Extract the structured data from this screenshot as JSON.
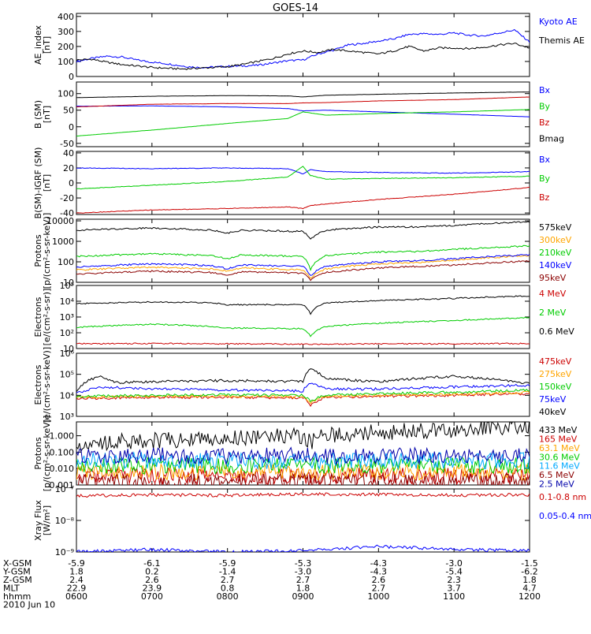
{
  "title": "GOES-14",
  "chart_data": [
    {
      "type": "line",
      "panel": "ae",
      "ylabel": "AE_index\n[nT]",
      "ylim": [
        0,
        420
      ],
      "ticks": [
        "0",
        "100",
        "200",
        "300",
        "400"
      ],
      "tick_values": [
        0,
        100,
        200,
        300,
        400
      ],
      "series": [
        {
          "name": "Kyoto AE",
          "color": "#0000ff",
          "x": [
            6.0,
            6.2,
            6.4,
            6.6,
            6.8,
            7.0,
            7.2,
            7.4,
            7.6,
            7.8,
            8.0,
            8.2,
            8.4,
            8.6,
            8.8,
            9.0,
            9.2,
            9.4,
            9.6,
            9.8,
            10.0,
            10.2,
            10.4,
            10.6,
            10.8,
            11.0,
            11.2,
            11.4,
            11.6,
            11.8,
            12.0
          ],
          "y": [
            100,
            120,
            135,
            130,
            110,
            95,
            85,
            70,
            60,
            62,
            68,
            70,
            75,
            90,
            105,
            110,
            150,
            175,
            210,
            220,
            235,
            250,
            280,
            285,
            280,
            290,
            275,
            270,
            290,
            310,
            230
          ]
        },
        {
          "name": "Themis AE",
          "color": "#000000",
          "x": [
            6.0,
            6.2,
            6.4,
            6.6,
            6.8,
            7.0,
            7.2,
            7.4,
            7.6,
            7.8,
            8.0,
            8.2,
            8.4,
            8.6,
            8.8,
            9.0,
            9.2,
            9.4,
            9.6,
            9.8,
            10.0,
            10.2,
            10.4,
            10.6,
            10.8,
            11.0,
            11.2,
            11.4,
            11.6,
            11.8,
            12.0
          ],
          "y": [
            110,
            115,
            95,
            80,
            70,
            60,
            55,
            50,
            55,
            60,
            65,
            80,
            100,
            120,
            150,
            170,
            160,
            180,
            170,
            160,
            150,
            170,
            200,
            170,
            190,
            190,
            185,
            195,
            210,
            220,
            190
          ]
        }
      ]
    },
    {
      "type": "line",
      "panel": "b_sm",
      "ylabel": "B (SM)\n[nT]",
      "ylim": [
        -60,
        135
      ],
      "ticks": [
        "-50",
        "0",
        "50",
        "100"
      ],
      "tick_values": [
        -50,
        0,
        50,
        100
      ],
      "series": [
        {
          "name": "Bx",
          "color": "#0000ff",
          "x": [
            6.0,
            7.0,
            8.0,
            8.8,
            9.0,
            9.3,
            10.0,
            11.0,
            12.0
          ],
          "y": [
            62,
            63,
            60,
            55,
            48,
            50,
            45,
            38,
            30
          ]
        },
        {
          "name": "By",
          "color": "#00cc00",
          "x": [
            6.0,
            7.0,
            8.0,
            8.8,
            9.0,
            9.3,
            10.0,
            11.0,
            12.0
          ],
          "y": [
            -28,
            -10,
            10,
            25,
            45,
            35,
            40,
            45,
            52
          ]
        },
        {
          "name": "Bz",
          "color": "#cc0000",
          "x": [
            6.0,
            7.0,
            8.0,
            8.8,
            9.0,
            9.3,
            10.0,
            11.0,
            12.0
          ],
          "y": [
            60,
            68,
            70,
            70,
            72,
            73,
            78,
            82,
            90
          ]
        },
        {
          "name": "Bmag",
          "color": "#000000",
          "x": [
            6.0,
            7.0,
            8.0,
            8.8,
            9.0,
            9.3,
            10.0,
            11.0,
            12.0
          ],
          "y": [
            88,
            92,
            94,
            93,
            90,
            95,
            98,
            102,
            105
          ]
        }
      ]
    },
    {
      "type": "line",
      "panel": "b_igrf",
      "ylabel": "B(SM)-IGRF (SM)\n[nT]",
      "ylim": [
        -42,
        42
      ],
      "ticks": [
        "-40",
        "-20",
        "0",
        "20",
        "40"
      ],
      "tick_values": [
        -40,
        -20,
        0,
        20,
        40
      ],
      "series": [
        {
          "name": "Bx",
          "color": "#0000ff",
          "x": [
            6.0,
            7.0,
            8.0,
            8.8,
            9.0,
            9.1,
            9.3,
            10.0,
            11.0,
            12.0
          ],
          "y": [
            20,
            19,
            20,
            19,
            12,
            18,
            15,
            14,
            13,
            15
          ]
        },
        {
          "name": "By",
          "color": "#00cc00",
          "x": [
            6.0,
            7.0,
            8.0,
            8.8,
            9.0,
            9.1,
            9.3,
            10.0,
            11.0,
            12.0
          ],
          "y": [
            -8,
            -3,
            2,
            8,
            22,
            10,
            5,
            6,
            7,
            9
          ]
        },
        {
          "name": "Bz",
          "color": "#cc0000",
          "x": [
            6.0,
            7.0,
            8.0,
            8.8,
            9.0,
            9.1,
            9.3,
            10.0,
            11.0,
            12.0
          ],
          "y": [
            -40,
            -36,
            -34,
            -32,
            -34,
            -30,
            -28,
            -22,
            -15,
            -6
          ]
        }
      ]
    },
    {
      "type": "line",
      "panel": "protons_low",
      "scale": "log",
      "ylabel": "Protons\n[p/(cm²-s-sr-keV)]",
      "ylim": [
        10,
        12000
      ],
      "ticks": [
        "10",
        "100",
        "1000",
        "10000"
      ],
      "tick_values": [
        10,
        100,
        1000,
        10000
      ],
      "series": [
        {
          "name": "575keV",
          "color": "#000000",
          "x": [
            6.0,
            7.0,
            7.8,
            8.0,
            8.2,
            9.0,
            9.1,
            9.3,
            10.0,
            10.5,
            11.0,
            12.0
          ],
          "y": [
            3500,
            4500,
            3500,
            2500,
            3500,
            3000,
            1200,
            3500,
            5000,
            5000,
            6000,
            9000
          ]
        },
        {
          "name": "300keV",
          "color": "#ffa500",
          "x": [
            6.0,
            7.0,
            7.8,
            8.0,
            8.2,
            9.0,
            9.1,
            9.3,
            10.0,
            10.5,
            11.0,
            12.0
          ],
          "y": [
            40,
            55,
            45,
            35,
            50,
            40,
            15,
            45,
            80,
            90,
            120,
            200
          ]
        },
        {
          "name": "210keV",
          "color": "#00cc00",
          "x": [
            6.0,
            7.0,
            7.8,
            8.0,
            8.2,
            9.0,
            9.1,
            9.3,
            10.0,
            10.5,
            11.0,
            12.0
          ],
          "y": [
            180,
            250,
            200,
            140,
            220,
            180,
            40,
            200,
            300,
            320,
            400,
            600
          ]
        },
        {
          "name": "140keV",
          "color": "#0000ff",
          "x": [
            6.0,
            7.0,
            7.8,
            8.0,
            8.2,
            9.0,
            9.1,
            9.3,
            10.0,
            10.5,
            11.0,
            12.0
          ],
          "y": [
            55,
            80,
            65,
            45,
            70,
            60,
            20,
            60,
            100,
            110,
            140,
            220
          ]
        },
        {
          "name": "95keV",
          "color": "#8b0000",
          "x": [
            6.0,
            7.0,
            7.8,
            8.0,
            8.2,
            9.0,
            9.1,
            9.3,
            10.0,
            10.5,
            11.0,
            12.0
          ],
          "y": [
            25,
            35,
            30,
            22,
            32,
            28,
            12,
            30,
            50,
            60,
            70,
            110
          ]
        }
      ]
    },
    {
      "type": "line",
      "panel": "electrons_high",
      "scale": "log",
      "ylabel": "Electrons\n[e/(cm²-s-sr)]",
      "ylim": [
        10,
        100000
      ],
      "ticks": [
        "10",
        "10²",
        "10³",
        "10⁴",
        "10⁵"
      ],
      "tick_values": [
        10,
        100,
        1000,
        10000,
        100000
      ],
      "series": [
        {
          "name": "4 MeV",
          "color": "#cc0000",
          "x": [
            6.0,
            7.0,
            8.0,
            9.0,
            10.0,
            11.0,
            12.0
          ],
          "y": [
            20,
            21,
            20,
            19,
            20,
            20,
            21
          ]
        },
        {
          "name": "2 MeV",
          "color": "#00cc00",
          "x": [
            6.0,
            7.0,
            7.8,
            8.0,
            9.0,
            9.1,
            9.3,
            10.0,
            11.0,
            12.0
          ],
          "y": [
            220,
            350,
            250,
            200,
            180,
            60,
            250,
            400,
            600,
            900
          ]
        },
        {
          "name": "0.6 MeV",
          "color": "#000000",
          "x": [
            6.0,
            7.0,
            7.8,
            8.0,
            9.0,
            9.1,
            9.3,
            10.0,
            11.0,
            12.0
          ],
          "y": [
            7000,
            9000,
            8000,
            6000,
            6000,
            1500,
            8000,
            11000,
            15000,
            22000
          ]
        }
      ]
    },
    {
      "type": "line",
      "panel": "electrons_low",
      "scale": "log",
      "ylabel": "Electrons\n[e/(cm²-s-sr-keV)]",
      "ylim": [
        1000,
        1000000
      ],
      "ticks": [
        "10³",
        "10⁴",
        "10⁵",
        "10⁶"
      ],
      "tick_values": [
        1000,
        10000,
        100000,
        1000000
      ],
      "series": [
        {
          "name": "475keV",
          "color": "#cc0000",
          "x": [
            6.0,
            7.0,
            8.0,
            9.0,
            9.1,
            9.3,
            10.0,
            11.0,
            12.0
          ],
          "y": [
            7000,
            8000,
            8000,
            7500,
            3500,
            8000,
            9000,
            10000,
            12000
          ]
        },
        {
          "name": "275keV",
          "color": "#ffa500",
          "x": [
            6.0,
            7.0,
            8.0,
            9.0,
            9.1,
            9.3,
            10.0,
            11.0,
            12.0
          ],
          "y": [
            8000,
            9000,
            9000,
            8500,
            4000,
            9000,
            10000,
            11000,
            14000
          ]
        },
        {
          "name": "150keV",
          "color": "#00cc00",
          "x": [
            6.0,
            7.0,
            8.0,
            9.0,
            9.1,
            9.3,
            10.0,
            11.0,
            12.0
          ],
          "y": [
            9000,
            10000,
            10500,
            10000,
            5000,
            10500,
            12000,
            14000,
            18000
          ]
        },
        {
          "name": "75keV",
          "color": "#0000ff",
          "x": [
            6.0,
            6.3,
            7.0,
            8.0,
            9.0,
            9.1,
            9.3,
            10.0,
            11.0,
            12.0
          ],
          "y": [
            12000,
            25000,
            20000,
            18000,
            16000,
            40000,
            20000,
            20000,
            25000,
            30000
          ]
        },
        {
          "name": "40keV",
          "color": "#000000",
          "x": [
            6.0,
            6.3,
            6.5,
            7.0,
            8.0,
            9.0,
            9.1,
            9.3,
            10.0,
            11.0,
            12.0
          ],
          "y": [
            15000,
            80000,
            40000,
            45000,
            50000,
            45000,
            180000,
            60000,
            45000,
            80000,
            35000
          ]
        }
      ]
    },
    {
      "type": "line",
      "panel": "protons_high",
      "scale": "log",
      "ylabel": "Protons\n[p/(cm²-s-sr-keV)]",
      "ylim": [
        0.001,
        7
      ],
      "ticks": [
        "0.001",
        "0.010",
        "0.100",
        "1.000"
      ],
      "tick_values": [
        0.001,
        0.01,
        0.1,
        1
      ],
      "series": [
        {
          "name": "433 MeV",
          "color": "#000000",
          "x": [
            6.0,
            7.0,
            8.0,
            9.0,
            9.1,
            9.3,
            10.0,
            11.0,
            12.0
          ],
          "y": [
            0.35,
            0.5,
            0.7,
            1.0,
            0.4,
            1.1,
            1.6,
            2.4,
            3.8
          ]
        },
        {
          "name": "165 MeV",
          "color": "#cc0000",
          "x": [
            6.0,
            12.0
          ],
          "y": [
            0.0035,
            0.0035
          ]
        },
        {
          "name": "63.1 MeV",
          "color": "#ffa500",
          "x": [
            6.0,
            12.0
          ],
          "y": [
            0.006,
            0.006
          ]
        },
        {
          "name": "30.6 MeV",
          "color": "#00cc00",
          "x": [
            6.0,
            12.0
          ],
          "y": [
            0.015,
            0.015
          ]
        },
        {
          "name": "11.6 MeV",
          "color": "#00aaff",
          "x": [
            6.0,
            12.0
          ],
          "y": [
            0.03,
            0.03
          ]
        },
        {
          "name": "6.5 MeV",
          "color": "#8b0000",
          "x": [
            6.0,
            12.0
          ],
          "y": [
            0.0015,
            0.0015
          ]
        },
        {
          "name": "2.5 MeV",
          "color": "#0000aa",
          "x": [
            6.0,
            12.0
          ],
          "y": [
            0.06,
            0.06
          ]
        }
      ]
    },
    {
      "type": "line",
      "panel": "xray",
      "scale": "log",
      "ylabel": "Xray Flux\n[W/m²]",
      "ylim": [
        1e-09,
        1e-07
      ],
      "ticks": [
        "10⁻⁹",
        "10⁻⁸",
        "10⁻⁷"
      ],
      "tick_values": [
        1e-09,
        1e-08,
        1e-07
      ],
      "series": [
        {
          "name": "0.1-0.8 nm",
          "color": "#cc0000",
          "x": [
            6.0,
            7.0,
            8.0,
            9.0,
            10.0,
            11.0,
            12.0
          ],
          "y": [
            6e-08,
            6.5e-08,
            6.2e-08,
            6.8e-08,
            6.6e-08,
            6.3e-08,
            6.5e-08
          ]
        },
        {
          "name": "0.05-0.4 nm",
          "color": "#0000ff",
          "x": [
            6.0,
            7.0,
            8.0,
            9.0,
            10.0,
            11.0,
            12.0
          ],
          "y": [
            1e-09,
            1.2e-09,
            1e-09,
            1.1e-09,
            1.5e-09,
            1.2e-09,
            1.1e-09
          ]
        }
      ]
    }
  ],
  "bottom_table": {
    "labels": [
      "X-GSM",
      "Y-GSM",
      "Z-GSM",
      "MLT",
      "hhmm",
      "2010 Jun 10"
    ],
    "columns": [
      [
        "-5.9",
        "1.8",
        "2.4",
        "22.9",
        "0600"
      ],
      [
        "-6.1",
        "0.2",
        "2.6",
        "23.9",
        "0700"
      ],
      [
        "-5.9",
        "-1.4",
        "2.7",
        "0.8",
        "0800"
      ],
      [
        "-5.3",
        "-3.0",
        "2.7",
        "1.8",
        "0900"
      ],
      [
        "-4.3",
        "-4.3",
        "2.6",
        "2.7",
        "1000"
      ],
      [
        "-3.0",
        "-5.4",
        "2.3",
        "3.7",
        "1100"
      ],
      [
        "-1.5",
        "-6.2",
        "1.8",
        "4.7",
        "1200"
      ]
    ]
  }
}
